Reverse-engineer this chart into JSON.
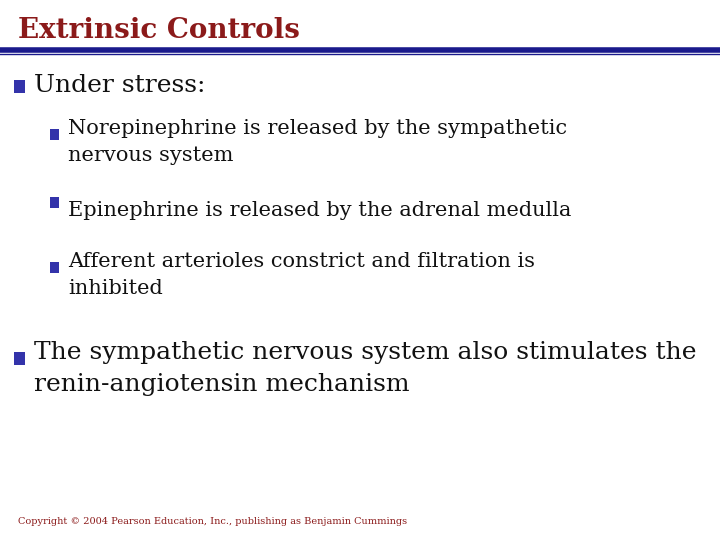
{
  "title": "Extrinsic Controls",
  "title_color": "#8B1A1A",
  "title_fontsize": 20,
  "line_color": "#1A1A8C",
  "bullet_color": "#3333AA",
  "text_color": "#111111",
  "bg_color": "#FFFFFF",
  "bullet1": "Under stress:",
  "bullet1_fontsize": 18,
  "sub_bullets": [
    "Norepinephrine is released by the sympathetic\nnervous system",
    "Epinephrine is released by the adrenal medulla",
    "Afferent arterioles constrict and filtration is\ninhibited"
  ],
  "sub_bullet_fontsize": 15,
  "bullet2": "The sympathetic nervous system also stimulates the\nrenin-angiotensin mechanism",
  "bullet2_fontsize": 18,
  "footer": "Copyright © 2004 Pearson Education, Inc., publishing as Benjamin Cummings",
  "footer_fontsize": 7,
  "footer_color": "#8B1A1A"
}
